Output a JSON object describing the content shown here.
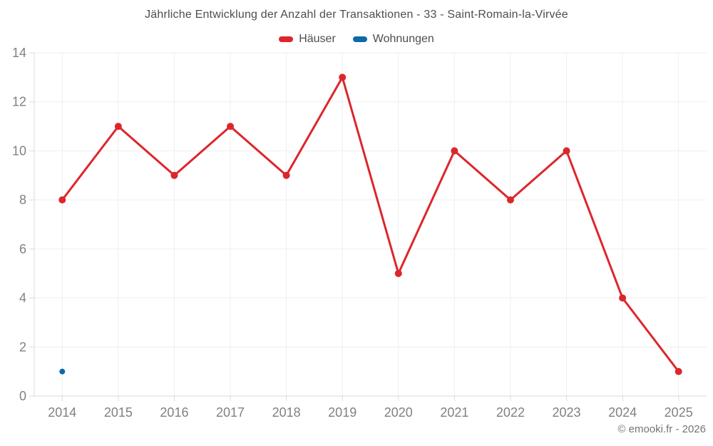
{
  "page": {
    "copyright": "© emooki.fr - 2026"
  },
  "chart_data": {
    "type": "line",
    "title": "Jährliche Entwicklung der Anzahl der Transaktionen - 33 - Saint-Romain-la-Virvée",
    "categories": [
      "2014",
      "2015",
      "2016",
      "2017",
      "2018",
      "2019",
      "2020",
      "2021",
      "2022",
      "2023",
      "2024",
      "2025"
    ],
    "series": [
      {
        "name": "Häuser",
        "color": "#dc262c",
        "values": [
          8,
          11,
          9,
          11,
          9,
          13,
          5,
          10,
          8,
          10,
          4,
          1
        ]
      },
      {
        "name": "Wohnungen",
        "color": "#0f69a5",
        "values": [
          1,
          null,
          null,
          null,
          null,
          null,
          null,
          null,
          null,
          null,
          null,
          null
        ]
      }
    ],
    "ylim": [
      0,
      14
    ],
    "ytick_step": 2,
    "yticks": [
      0,
      2,
      4,
      6,
      8,
      10,
      12,
      14
    ],
    "grid": true,
    "legend_position": "top",
    "colors": {
      "grid": "#efefef",
      "axis_line": "#d9d9d9",
      "axis_text": "#818181",
      "title_text": "#4d4d4d"
    }
  }
}
